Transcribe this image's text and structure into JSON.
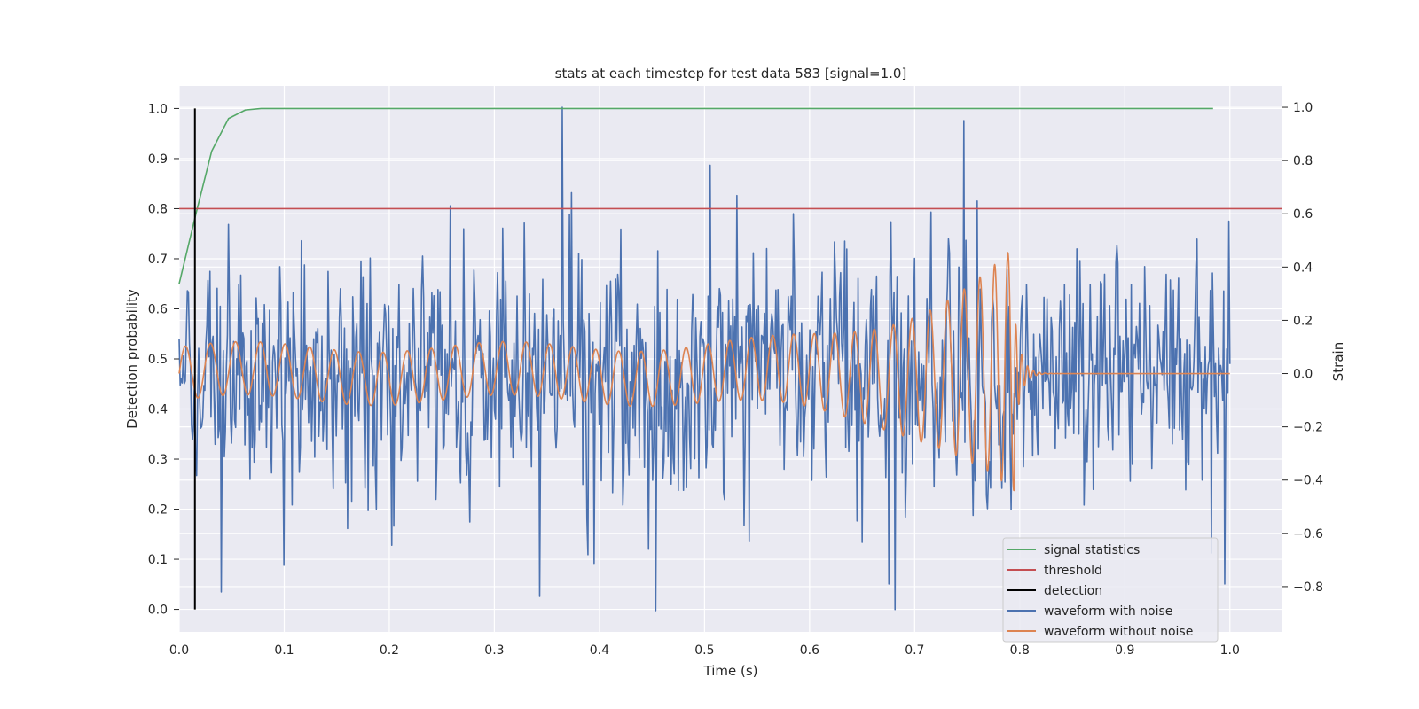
{
  "chart_data": {
    "type": "line",
    "title": "stats at each timestep for test data 583 [signal=1.0]",
    "xlabel": "Time (s)",
    "ylabel_left": "Detection probability",
    "ylabel_right": "Strain",
    "xlim": [
      0.0,
      1.05
    ],
    "ylim_left": [
      -0.045,
      1.045
    ],
    "ylim_right": [
      -0.97,
      1.08
    ],
    "xticks": [
      "0.0",
      "0.1",
      "0.2",
      "0.3",
      "0.4",
      "0.5",
      "0.6",
      "0.7",
      "0.8",
      "0.9",
      "1.0"
    ],
    "yticks_left": [
      "0.0",
      "0.1",
      "0.2",
      "0.3",
      "0.4",
      "0.5",
      "0.6",
      "0.7",
      "0.8",
      "0.9",
      "1.0"
    ],
    "yticks_right": [
      "−0.8",
      "−0.6",
      "−0.4",
      "−0.2",
      "0.0",
      "0.2",
      "0.4",
      "0.6",
      "0.8",
      "1.0"
    ],
    "grid": true,
    "legend_position": "lower-right",
    "series": [
      {
        "name": "signal statistics",
        "color": "#55a868",
        "axis": "left",
        "x": [
          0.0,
          0.016,
          0.031,
          0.047,
          0.063,
          0.078,
          0.1,
          0.2,
          0.4,
          0.6,
          0.8,
          0.984
        ],
        "y": [
          0.65,
          0.79,
          0.915,
          0.98,
          0.997,
          1.0,
          1.0,
          1.0,
          1.0,
          1.0,
          1.0,
          1.0
        ]
      },
      {
        "name": "threshold",
        "color": "#c44e52",
        "axis": "left",
        "x": [
          0.0,
          1.05
        ],
        "y": [
          0.8,
          0.8
        ]
      },
      {
        "name": "detection",
        "color": "#000000",
        "axis": "left",
        "x": [
          0.015,
          0.015
        ],
        "y": [
          0.0,
          1.0
        ]
      },
      {
        "name": "waveform with noise",
        "color": "#4c72b0",
        "axis": "right",
        "style": "noisy",
        "x_range": [
          0.0,
          1.0
        ],
        "num_points": 1024,
        "amplitude": 0.17,
        "peaks": [
          {
            "x": 0.365,
            "y": 1.0
          },
          {
            "x": 0.454,
            "y": -0.89
          },
          {
            "x": 0.047,
            "y": 0.56
          },
          {
            "x": 0.258,
            "y": 0.63
          },
          {
            "x": 0.677,
            "y": 0.57
          },
          {
            "x": 0.675,
            "y": -0.79
          },
          {
            "x": 0.995,
            "y": -0.79
          },
          {
            "x": 0.389,
            "y": -0.68
          },
          {
            "x": 0.1,
            "y": -0.72
          },
          {
            "x": 0.04,
            "y": -0.82
          }
        ]
      },
      {
        "name": "waveform without noise",
        "color": "#dd8452",
        "axis": "right",
        "style": "chirp",
        "x_range": [
          0.0,
          1.0
        ],
        "t_merger": 0.795,
        "base_amplitude": 0.1,
        "peak_amplitude": 0.46,
        "base_frequency": 28
      }
    ]
  }
}
